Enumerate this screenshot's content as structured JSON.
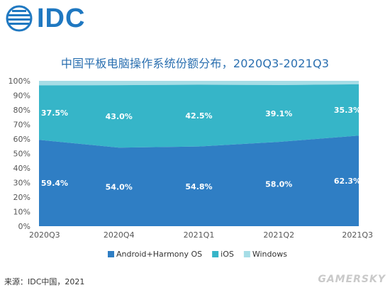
{
  "brand": {
    "logo_text": "IDC",
    "color": "#1f78c1"
  },
  "title": "中国平板电脑操作系统份额分布，2020Q3-2021Q3",
  "source": "来源：IDC中国，2021",
  "watermark": "GAMERSKY",
  "colors": {
    "android": "#2f7ec4",
    "ios": "#36b5c8",
    "windows": "#a6dde6",
    "tick": "#555555",
    "label": "#ffffff"
  },
  "chart_data": {
    "type": "area",
    "stacked": true,
    "categories": [
      "2020Q3",
      "2020Q4",
      "2021Q1",
      "2021Q2",
      "2021Q3"
    ],
    "ylim": [
      0,
      100
    ],
    "y_ticks": [
      "0%",
      "10%",
      "20%",
      "30%",
      "40%",
      "50%",
      "60%",
      "70%",
      "80%",
      "90%",
      "100%"
    ],
    "series": [
      {
        "name": "Android+Harmony OS",
        "values": [
          59.4,
          54.0,
          54.8,
          58.0,
          62.3
        ],
        "labels": [
          "59.4%",
          "54.0%",
          "54.8%",
          "58.0%",
          "62.3%"
        ],
        "color": "#2f7ec4"
      },
      {
        "name": "iOS",
        "values": [
          37.5,
          43.0,
          42.5,
          39.1,
          35.3
        ],
        "labels": [
          "37.5%",
          "43.0%",
          "42.5%",
          "39.1%",
          "35.3%"
        ],
        "color": "#36b5c8"
      },
      {
        "name": "Windows",
        "values": [
          3.1,
          3.0,
          2.7,
          2.9,
          2.4
        ],
        "color": "#a6dde6"
      }
    ],
    "legend": "bottom",
    "grid": false
  }
}
